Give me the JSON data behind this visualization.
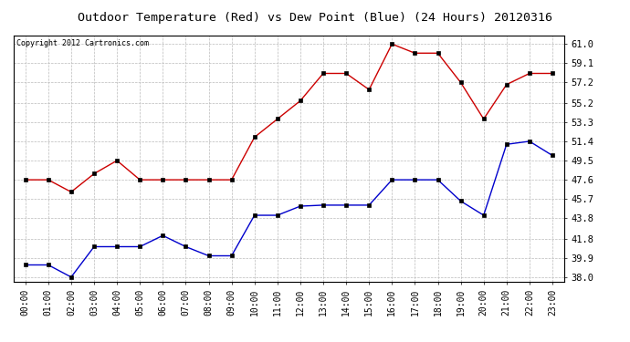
{
  "title": "Outdoor Temperature (Red) vs Dew Point (Blue) (24 Hours) 20120316",
  "copyright": "Copyright 2012 Cartronics.com",
  "x_labels": [
    "00:00",
    "01:00",
    "02:00",
    "03:00",
    "04:00",
    "05:00",
    "06:00",
    "07:00",
    "08:00",
    "09:00",
    "10:00",
    "11:00",
    "12:00",
    "13:00",
    "14:00",
    "15:00",
    "16:00",
    "17:00",
    "18:00",
    "19:00",
    "20:00",
    "21:00",
    "22:00",
    "23:00"
  ],
  "temp_red": [
    47.6,
    47.6,
    46.4,
    48.2,
    49.5,
    47.6,
    47.6,
    47.6,
    47.6,
    47.6,
    51.8,
    53.6,
    55.4,
    58.1,
    58.1,
    56.5,
    61.0,
    60.1,
    60.1,
    57.2,
    53.6,
    57.0,
    58.1,
    58.1
  ],
  "dew_blue": [
    39.2,
    39.2,
    38.0,
    41.0,
    41.0,
    41.0,
    42.1,
    41.0,
    40.1,
    40.1,
    44.1,
    44.1,
    45.0,
    45.1,
    45.1,
    45.1,
    47.6,
    47.6,
    47.6,
    45.5,
    44.1,
    51.1,
    51.4,
    50.0
  ],
  "y_ticks": [
    38.0,
    39.9,
    41.8,
    43.8,
    45.7,
    47.6,
    49.5,
    51.4,
    53.3,
    55.2,
    57.2,
    59.1,
    61.0
  ],
  "ylim": [
    37.5,
    61.8
  ],
  "background_color": "#ffffff",
  "plot_bg_color": "#ffffff",
  "grid_color": "#bbbbbb",
  "red_color": "#cc0000",
  "blue_color": "#0000cc",
  "title_fontsize": 9.5,
  "copyright_fontsize": 6.0,
  "tick_fontsize": 7.0,
  "ytick_fontsize": 7.5
}
